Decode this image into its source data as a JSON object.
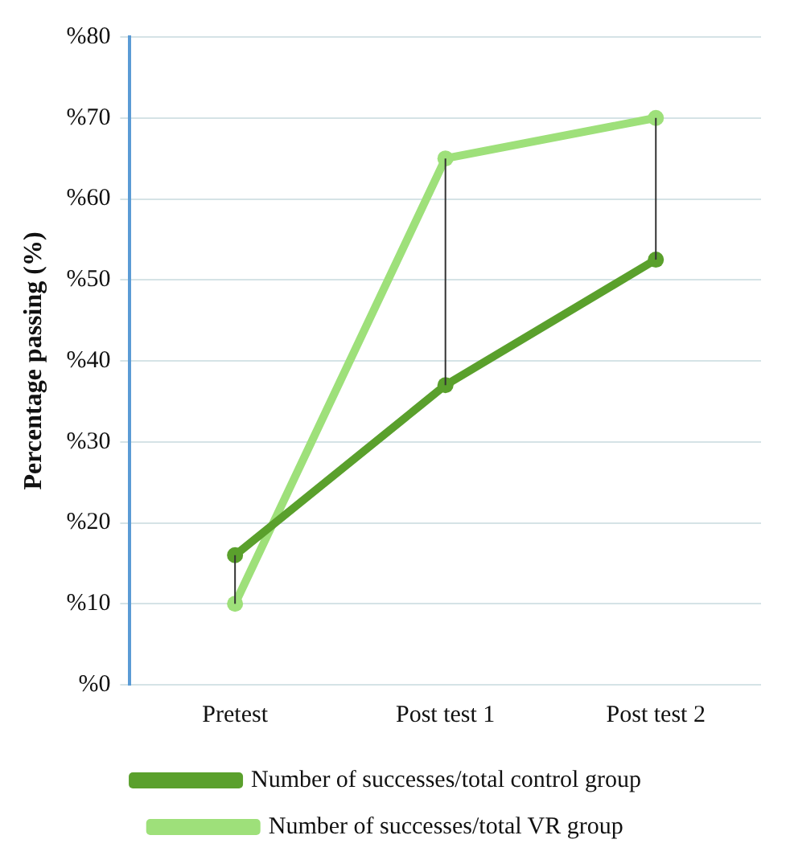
{
  "chart_data": {
    "type": "line",
    "ylabel": "Percentage passing (%)",
    "categories": [
      "Pretest",
      "Post test 1",
      "Post test 2"
    ],
    "series": [
      {
        "name": "Number of successes/total control group",
        "color": "#5aa02c",
        "values": [
          16,
          37,
          52.5
        ],
        "errors": [
          [
            10,
            16
          ],
          [
            37,
            65
          ],
          [
            52.5,
            70
          ]
        ]
      },
      {
        "name": "Number of successes/total VR group",
        "color": "#9ee07a",
        "values": [
          10,
          65,
          70
        ]
      }
    ],
    "ylim": [
      0,
      80
    ],
    "yticks": [
      {
        "value": 0,
        "label": "%0"
      },
      {
        "value": 10,
        "label": "%10"
      },
      {
        "value": 20,
        "label": "%20"
      },
      {
        "value": 30,
        "label": "%30"
      },
      {
        "value": 40,
        "label": "%40"
      },
      {
        "value": 50,
        "label": "%50"
      },
      {
        "value": 60,
        "label": "%60"
      },
      {
        "value": 70,
        "label": "%70"
      },
      {
        "value": 80,
        "label": "%80"
      }
    ],
    "grid": "y",
    "legend": "bottom",
    "marker": "circle",
    "line_style": "solid"
  }
}
